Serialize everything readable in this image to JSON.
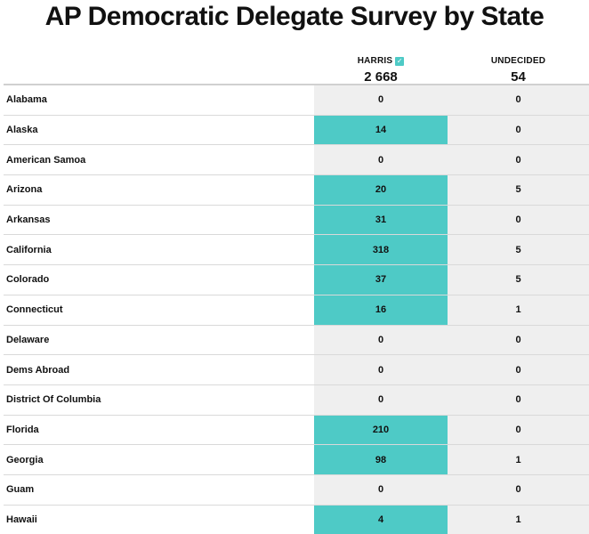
{
  "title": "AP Democratic Delegate Survey by State",
  "colors": {
    "harris_fill": "#4ecac6",
    "grey_column": "#efefef"
  },
  "chart_data": {
    "type": "table",
    "title": "AP Democratic Delegate Survey by State",
    "columns": [
      {
        "name": "HARRIS",
        "winner_check": true,
        "total": "2 668"
      },
      {
        "name": "UNDECIDED",
        "winner_check": false,
        "total": "54"
      }
    ],
    "rows": [
      {
        "state": "Alabama",
        "harris": 0,
        "undecided": 0
      },
      {
        "state": "Alaska",
        "harris": 14,
        "undecided": 0
      },
      {
        "state": "American Samoa",
        "harris": 0,
        "undecided": 0
      },
      {
        "state": "Arizona",
        "harris": 20,
        "undecided": 5
      },
      {
        "state": "Arkansas",
        "harris": 31,
        "undecided": 0
      },
      {
        "state": "California",
        "harris": 318,
        "undecided": 5
      },
      {
        "state": "Colorado",
        "harris": 37,
        "undecided": 5
      },
      {
        "state": "Connecticut",
        "harris": 16,
        "undecided": 1
      },
      {
        "state": "Delaware",
        "harris": 0,
        "undecided": 0
      },
      {
        "state": "Dems Abroad",
        "harris": 0,
        "undecided": 0
      },
      {
        "state": "District Of Columbia",
        "harris": 0,
        "undecided": 0
      },
      {
        "state": "Florida",
        "harris": 210,
        "undecided": 0
      },
      {
        "state": "Georgia",
        "harris": 98,
        "undecided": 1
      },
      {
        "state": "Guam",
        "harris": 0,
        "undecided": 0
      },
      {
        "state": "Hawaii",
        "harris": 4,
        "undecided": 1
      }
    ]
  }
}
